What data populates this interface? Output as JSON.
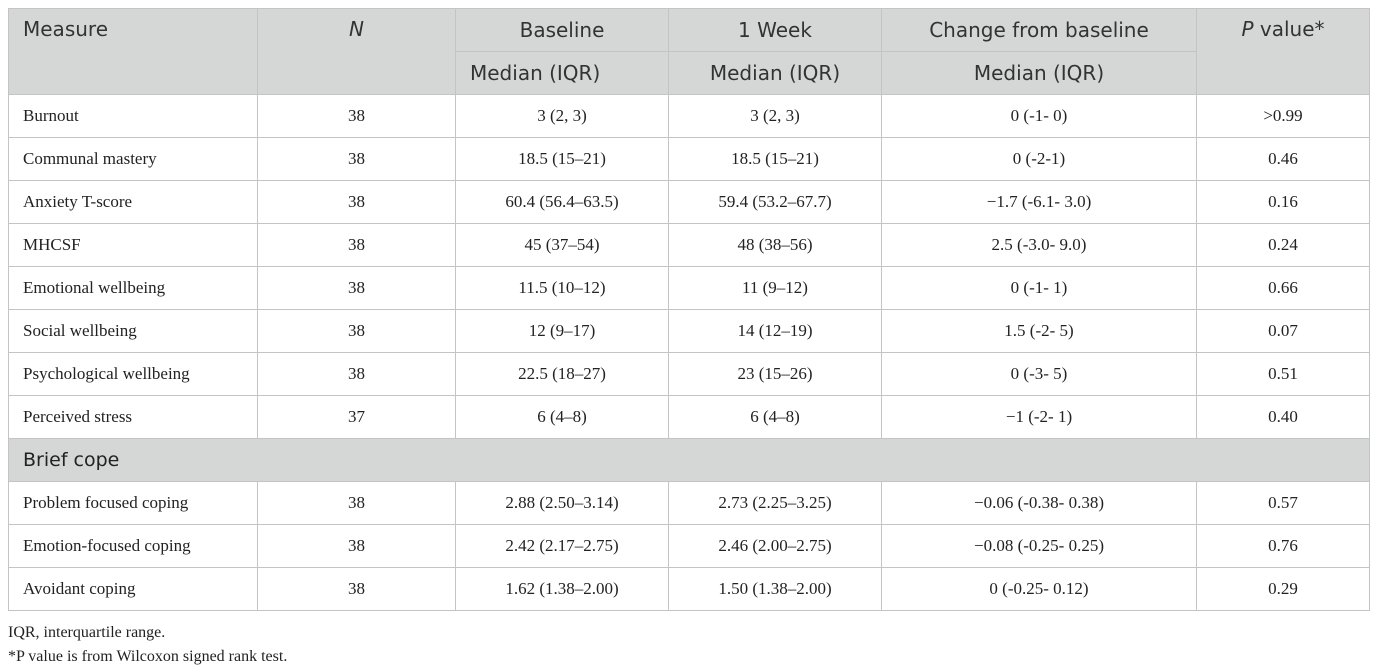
{
  "table": {
    "header": {
      "measure": "Measure",
      "n": "N",
      "baseline": "Baseline",
      "week1": "1 Week",
      "change": "Change from baseline",
      "p_value": {
        "italic": "P",
        "text": "value*"
      },
      "subheader": [
        "Median (IQR)",
        "Median (IQR)",
        "Median (IQR)"
      ]
    },
    "rows": [
      [
        "Burnout",
        "38",
        "3 (2, 3)",
        "3 (2, 3)",
        "0 (-1- 0)",
        ">0.99"
      ],
      [
        "Communal mastery",
        "38",
        "18.5 (15–21)",
        "18.5 (15–21)",
        "0 (-2-1)",
        "0.46"
      ],
      [
        "Anxiety T-score",
        "38",
        "60.4 (56.4–63.5)",
        "59.4 (53.2–67.7)",
        "−1.7 (-6.1- 3.0)",
        "0.16"
      ],
      [
        "MHCSF",
        "38",
        "45 (37–54)",
        "48 (38–56)",
        "2.5 (-3.0- 9.0)",
        "0.24"
      ],
      [
        "Emotional wellbeing",
        "38",
        "11.5 (10–12)",
        "11 (9–12)",
        "0 (-1- 1)",
        "0.66"
      ],
      [
        "Social wellbeing",
        "38",
        "12 (9–17)",
        "14 (12–19)",
        "1.5 (-2- 5)",
        "0.07"
      ],
      [
        "Psychological wellbeing",
        "38",
        "22.5 (18–27)",
        "23 (15–26)",
        "0 (-3- 5)",
        "0.51"
      ],
      [
        "Perceived stress",
        "37",
        "6 (4–8)",
        "6 (4–8)",
        "−1 (-2- 1)",
        "0.40"
      ]
    ],
    "section": {
      "title": "Brief cope",
      "rows": [
        [
          "Problem focused coping",
          "38",
          "2.88 (2.50–3.14)",
          "2.73 (2.25–3.25)",
          "−0.06 (-0.38- 0.38)",
          "0.57"
        ],
        [
          "Emotion-focused coping",
          "38",
          "2.42 (2.17–2.75)",
          "2.46 (2.00–2.75)",
          "−0.08 (-0.25- 0.25)",
          "0.76"
        ],
        [
          "Avoidant coping",
          "38",
          "1.62 (1.38–2.00)",
          "1.50 (1.38–2.00)",
          "0 (-0.25- 0.12)",
          "0.29"
        ]
      ]
    }
  },
  "footnotes": [
    "IQR, interquartile range.",
    "*P value is from Wilcoxon signed rank test."
  ]
}
